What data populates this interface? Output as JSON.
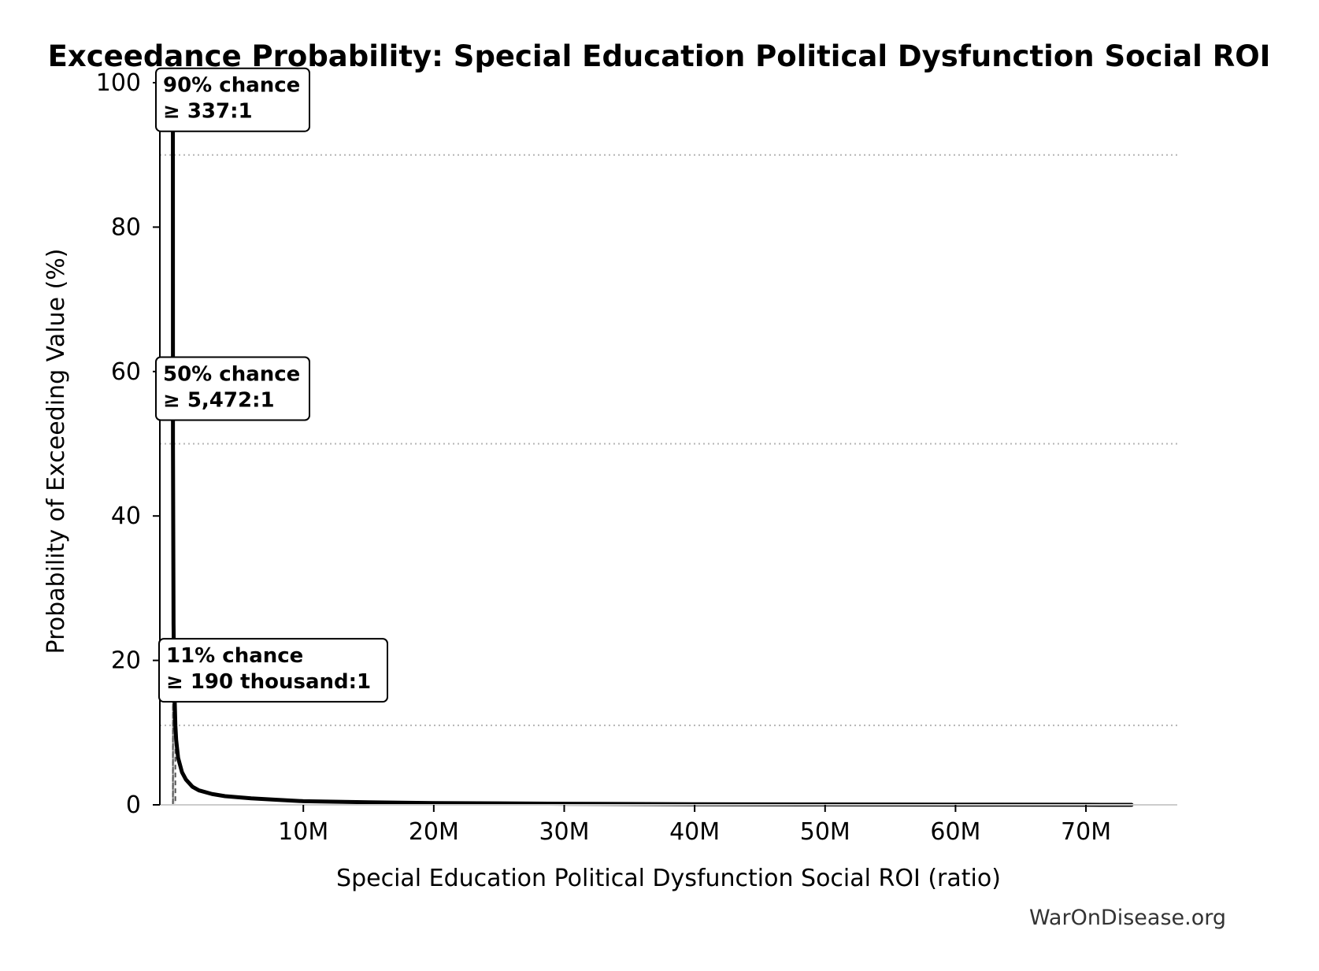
{
  "chart_data": {
    "type": "area",
    "title": "Exceedance Probability: Special Education Political Dysfunction Social ROI",
    "xlabel": "Special Education Political Dysfunction Social ROI (ratio)",
    "ylabel": "Probability of Exceeding Value (%)",
    "xlim": [
      -1000000,
      77000000
    ],
    "ylim": [
      0,
      100
    ],
    "x_ticks": [
      10000000,
      20000000,
      30000000,
      40000000,
      50000000,
      60000000,
      70000000
    ],
    "x_tick_labels": [
      "10M",
      "20M",
      "30M",
      "40M",
      "50M",
      "60M",
      "70M"
    ],
    "y_ticks": [
      0,
      20,
      40,
      60,
      80,
      100
    ],
    "y_tick_labels": [
      "0",
      "20",
      "40",
      "60",
      "80",
      "100"
    ],
    "grid": false,
    "reference_lines_y": [
      90,
      50,
      11
    ],
    "series": [
      {
        "x": [
          0,
          337,
          5472,
          50000,
          100000,
          190000,
          250000,
          400000,
          700000,
          1000000,
          1500000,
          2000000,
          3000000,
          4000000,
          6000000,
          8000000,
          10000000,
          15000000,
          20000000,
          30000000,
          40000000,
          50000000,
          60000000,
          70000000,
          73500000
        ],
        "y": [
          100,
          90,
          50,
          25,
          17,
          11,
          9,
          6.5,
          4.5,
          3.5,
          2.5,
          2.0,
          1.5,
          1.2,
          0.9,
          0.7,
          0.5,
          0.35,
          0.25,
          0.15,
          0.08,
          0.05,
          0.03,
          0.01,
          0
        ]
      }
    ],
    "annotations": [
      {
        "line1": "90% chance",
        "line2": "≥ 337:1",
        "x": 337,
        "y": 90
      },
      {
        "line1": "50% chance",
        "line2": "≥ 5,472:1",
        "x": 5472,
        "y": 50
      },
      {
        "line1": "11% chance",
        "line2": "≥ 190 thousand:1",
        "x": 190000,
        "y": 11
      }
    ],
    "source_label": "WarOnDisease.org"
  }
}
